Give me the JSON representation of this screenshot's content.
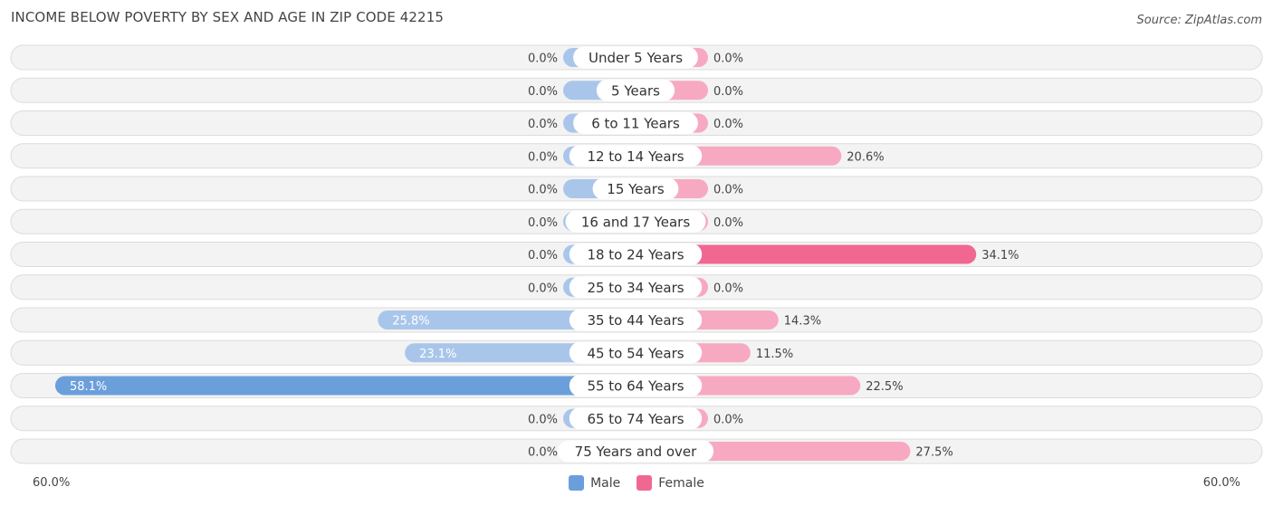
{
  "title": "INCOME BELOW POVERTY BY SEX AND AGE IN ZIP CODE 42215",
  "source": "Source: ZipAtlas.com",
  "colors": {
    "male": "#a9c6ea",
    "male_dark": "#6a9fdb",
    "female": "#f7a9c2",
    "female_dark": "#f06892",
    "row_bg": "#eeeeee"
  },
  "legend": {
    "male_label": "Male",
    "female_label": "Female"
  },
  "axis": {
    "left_label": "60.0%",
    "right_label": "60.0%"
  },
  "chart_data": {
    "type": "bar",
    "orientation": "horizontal-diverging",
    "title": "INCOME BELOW POVERTY BY SEX AND AGE IN ZIP CODE 42215",
    "xlim": [
      -60,
      60
    ],
    "categories": [
      "Under 5 Years",
      "5 Years",
      "6 to 11 Years",
      "12 to 14 Years",
      "15 Years",
      "16 and 17 Years",
      "18 to 24 Years",
      "25 to 34 Years",
      "35 to 44 Years",
      "45 to 54 Years",
      "55 to 64 Years",
      "65 to 74 Years",
      "75 Years and over"
    ],
    "series": [
      {
        "name": "Male",
        "values": [
          0.0,
          0.0,
          0.0,
          0.0,
          0.0,
          0.0,
          0.0,
          0.0,
          25.8,
          23.1,
          58.1,
          0.0,
          0.0
        ],
        "labels": [
          "0.0%",
          "0.0%",
          "0.0%",
          "0.0%",
          "0.0%",
          "0.0%",
          "0.0%",
          "0.0%",
          "25.8%",
          "23.1%",
          "58.1%",
          "0.0%",
          "0.0%"
        ]
      },
      {
        "name": "Female",
        "values": [
          0.0,
          0.0,
          0.0,
          20.6,
          0.0,
          0.0,
          34.1,
          0.0,
          14.3,
          11.5,
          22.5,
          0.0,
          27.5
        ],
        "labels": [
          "0.0%",
          "0.0%",
          "0.0%",
          "20.6%",
          "0.0%",
          "0.0%",
          "34.1%",
          "0.0%",
          "14.3%",
          "11.5%",
          "22.5%",
          "0.0%",
          "27.5%"
        ]
      }
    ]
  }
}
